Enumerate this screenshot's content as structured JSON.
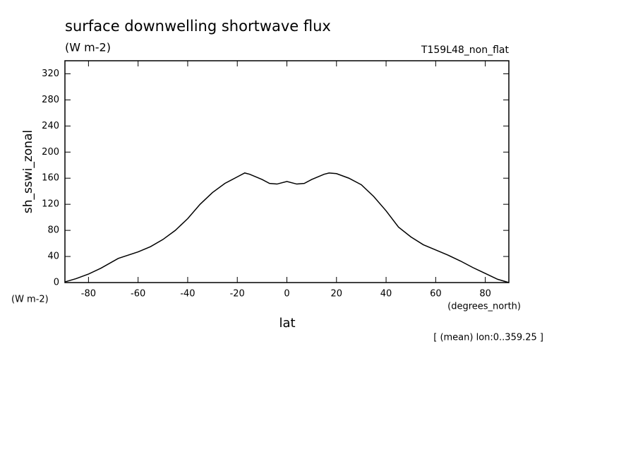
{
  "chart_data": {
    "type": "line",
    "title": "surface downwelling shortwave flux",
    "subtitle": "(W m-2)",
    "experiment": "T159L48_non_flat",
    "y_label": "sh_sswi_zonal",
    "y_units": "(W m-2)",
    "x_label": "lat",
    "x_units": "(degrees_north)",
    "note": "[ (mean) lon:0..359.25 ]",
    "x": [
      -89.5,
      -85,
      -80,
      -75,
      -68,
      -60,
      -55,
      -50,
      -45,
      -40,
      -35,
      -30,
      -25,
      -20,
      -17,
      -15,
      -10,
      -7,
      -4,
      0,
      4,
      7,
      10,
      15,
      17,
      20,
      25,
      30,
      35,
      40,
      45,
      50,
      55,
      60,
      65,
      70,
      75,
      80,
      85,
      89.5
    ],
    "series": [
      {
        "color": "#000000",
        "values": [
          1,
          6,
          13,
          22,
          37,
          47,
          55,
          66,
          80,
          98,
          120,
          138,
          152,
          162,
          168,
          166,
          158,
          152,
          151,
          155,
          151,
          152,
          158,
          166,
          168,
          167,
          160,
          150,
          132,
          110,
          85,
          70,
          58,
          50,
          42,
          33,
          23,
          14,
          5,
          0
        ]
      }
    ],
    "xlim": [
      -89.5,
      89.5
    ],
    "xticks": [
      -80,
      -60,
      -40,
      -20,
      0,
      20,
      40,
      60,
      80
    ],
    "ylim": [
      0,
      340
    ],
    "yticks": [
      0,
      40,
      80,
      120,
      160,
      200,
      240,
      280,
      320
    ]
  }
}
